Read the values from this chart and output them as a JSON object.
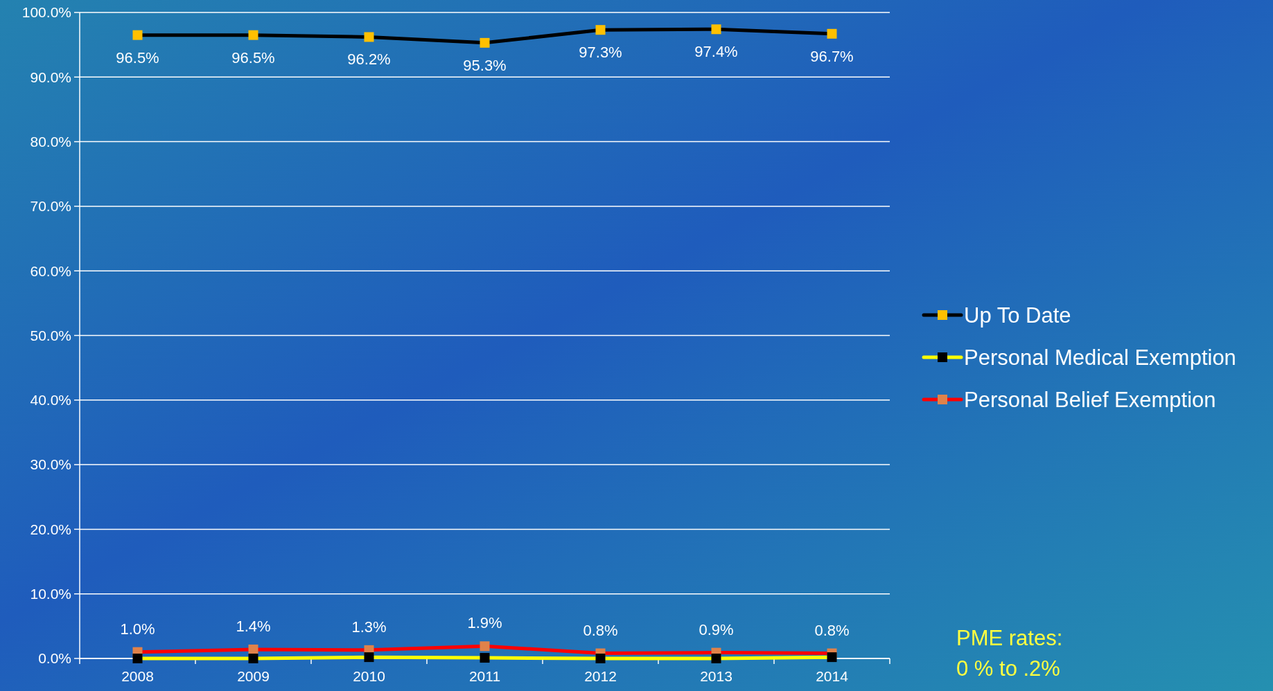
{
  "chart_data": {
    "type": "line",
    "categories": [
      "2008",
      "2009",
      "2010",
      "2011",
      "2012",
      "2013",
      "2014"
    ],
    "ylim": [
      0,
      100
    ],
    "yticks": [
      {
        "value": 0,
        "label": "0.0%"
      },
      {
        "value": 10,
        "label": "10.0%"
      },
      {
        "value": 20,
        "label": "20.0%"
      },
      {
        "value": 30,
        "label": "30.0%"
      },
      {
        "value": 40,
        "label": "40.0%"
      },
      {
        "value": 50,
        "label": "50.0%"
      },
      {
        "value": 60,
        "label": "60.0%"
      },
      {
        "value": 70,
        "label": "70.0%"
      },
      {
        "value": 80,
        "label": "80.0%"
      },
      {
        "value": 90,
        "label": "90.0%"
      },
      {
        "value": 100,
        "label": "100.0%"
      }
    ],
    "grid": "y",
    "legend": "right",
    "line_style": "solid",
    "series": [
      {
        "name": "Up To Date",
        "color": "#000000",
        "marker": "square",
        "colors": [
          "#ffc000",
          "#ffc000",
          "#ffc000",
          "#ffc000",
          "#ffc000",
          "#ffc000",
          "#ffc000"
        ],
        "values": [
          96.5,
          96.5,
          96.2,
          95.3,
          97.3,
          97.4,
          96.7
        ],
        "value_labels": [
          "96.5%",
          "96.5%",
          "96.2%",
          "95.3%",
          "97.3%",
          "97.4%",
          "96.7%"
        ]
      },
      {
        "name": "Personal Medical Exemption",
        "color": "#ffff00",
        "marker": "square",
        "colors": [
          "#000000",
          "#000000",
          "#000000",
          "#000000",
          "#000000",
          "#000000",
          "#000000"
        ],
        "values": [
          0,
          0,
          0.2,
          0.1,
          0,
          0,
          0.2
        ]
      },
      {
        "name": "Personal Belief Exemption",
        "color": "#ff0000",
        "marker": "square",
        "colors": [
          "#e0824a",
          "#e0824a",
          "#e0824a",
          "#e0824a",
          "#e0824a",
          "#e0824a",
          "#e0824a"
        ],
        "values": [
          1.0,
          1.4,
          1.3,
          1.9,
          0.8,
          0.9,
          0.8
        ],
        "value_labels": [
          "1.0%",
          "1.4%",
          "1.3%",
          "1.9%",
          "0.8%",
          "0.9%",
          "0.8%"
        ]
      }
    ],
    "annotations": [
      "PME rates:",
      "0 %  to  .2%"
    ]
  }
}
